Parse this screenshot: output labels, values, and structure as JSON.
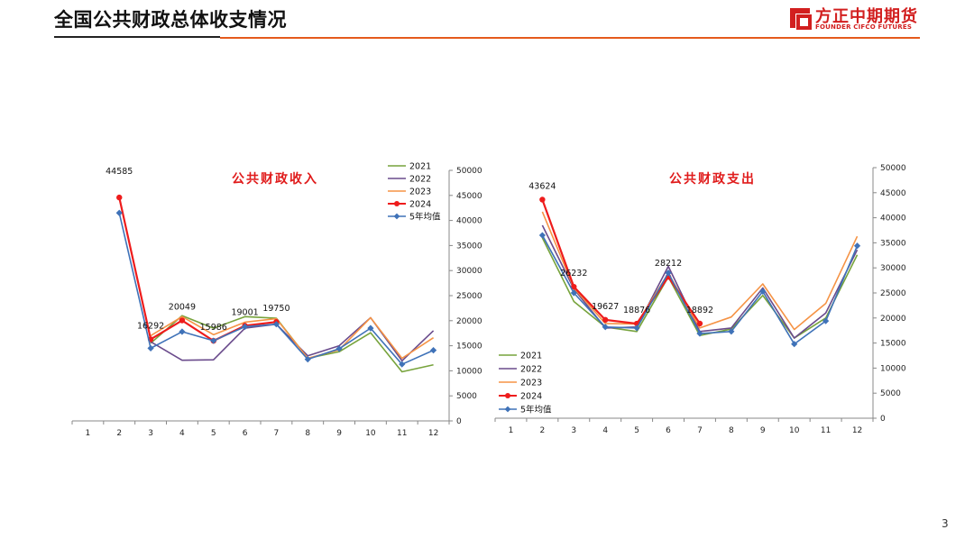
{
  "header": {
    "title": "全国公共财政总体收支情况",
    "logo_cn": "方正中期期货",
    "logo_en": "FOUNDER CIFCO FUTURES",
    "page_number": "3"
  },
  "colors": {
    "accent_orange": "#e55a1c",
    "logo_red": "#d21f1f",
    "title_red": "#e01b1b",
    "s2021": "#77a33c",
    "s2022": "#6a4b8c",
    "s2023": "#f59345",
    "s2024": "#ee1c1c",
    "avg": "#3f72b8"
  },
  "chart_data": [
    {
      "type": "line",
      "title": "公共财政收入",
      "categories": [
        "1",
        "2",
        "3",
        "4",
        "5",
        "6",
        "7",
        "8",
        "9",
        "10",
        "11",
        "12"
      ],
      "ylim": [
        0,
        50000
      ],
      "yticks": [
        0,
        5000,
        10000,
        15000,
        20000,
        25000,
        30000,
        35000,
        40000,
        45000,
        50000
      ],
      "y_axis_side": "right",
      "legend_position": "top-right",
      "series": [
        {
          "name": "2021",
          "key": "s2021",
          "marker": "none",
          "values": [
            null,
            null,
            15500,
            21000,
            18500,
            20800,
            20500,
            12500,
            13800,
            17600,
            9800,
            11200
          ]
        },
        {
          "name": "2022",
          "key": "s2022",
          "marker": "none",
          "values": [
            null,
            null,
            15800,
            12100,
            12200,
            18500,
            19300,
            13000,
            15000,
            20600,
            12000,
            18000
          ]
        },
        {
          "name": "2023",
          "key": "s2023",
          "marker": "none",
          "values": [
            null,
            null,
            17000,
            20800,
            17200,
            19700,
            20400,
            12500,
            14200,
            20600,
            12500,
            16600
          ]
        },
        {
          "name": "2024",
          "key": "s2024",
          "marker": "circle",
          "values": [
            null,
            44585,
            16292,
            20049,
            15986,
            19001,
            19750,
            null,
            null,
            null,
            null,
            null
          ]
        },
        {
          "name": "5年均值",
          "key": "avg",
          "marker": "diamond",
          "values": [
            null,
            41500,
            14500,
            17800,
            16000,
            18800,
            19300,
            12300,
            14400,
            18500,
            11300,
            14100
          ]
        }
      ],
      "data_labels": [
        {
          "category": "2",
          "value": 44585,
          "text": "44585"
        },
        {
          "category": "3",
          "value": 16292,
          "text": "16292"
        },
        {
          "category": "4",
          "value": 20049,
          "text": "20049"
        },
        {
          "category": "5",
          "value": 15986,
          "text": "15986"
        },
        {
          "category": "6",
          "value": 19001,
          "text": "19001"
        },
        {
          "category": "7",
          "value": 19750,
          "text": "19750"
        }
      ]
    },
    {
      "type": "line",
      "title": "公共财政支出",
      "categories": [
        "1",
        "2",
        "3",
        "4",
        "5",
        "6",
        "7",
        "8",
        "9",
        "10",
        "11",
        "12"
      ],
      "ylim": [
        0,
        50000
      ],
      "yticks": [
        0,
        5000,
        10000,
        15000,
        20000,
        25000,
        30000,
        35000,
        40000,
        45000,
        50000
      ],
      "y_axis_side": "right",
      "legend_position": "bottom-left",
      "series": [
        {
          "name": "2021",
          "key": "s2021",
          "marker": "none",
          "values": [
            null,
            36000,
            23300,
            18200,
            17300,
            28200,
            16500,
            17800,
            24500,
            16000,
            20000,
            32600
          ]
        },
        {
          "name": "2022",
          "key": "s2022",
          "marker": "none",
          "values": [
            null,
            38500,
            25800,
            18000,
            18200,
            30300,
            17300,
            18000,
            26000,
            16000,
            21000,
            33600
          ]
        },
        {
          "name": "2023",
          "key": "s2023",
          "marker": "none",
          "values": [
            null,
            41200,
            26000,
            18900,
            18800,
            28900,
            18000,
            20200,
            26800,
            17700,
            22900,
            36300
          ]
        },
        {
          "name": "2024",
          "key": "s2024",
          "marker": "circle",
          "values": [
            null,
            43624,
            26232,
            19627,
            18876,
            28212,
            18892,
            null,
            null,
            null,
            null,
            null
          ]
        },
        {
          "name": "5年均值",
          "key": "avg",
          "marker": "diamond",
          "values": [
            null,
            36500,
            25000,
            18200,
            18000,
            29000,
            16900,
            17300,
            25300,
            14800,
            19400,
            34400
          ]
        }
      ],
      "data_labels": [
        {
          "category": "2",
          "value": 43624,
          "text": "43624"
        },
        {
          "category": "3",
          "value": 26232,
          "text": "26232"
        },
        {
          "category": "4",
          "value": 19627,
          "text": "19627"
        },
        {
          "category": "5",
          "value": 18876,
          "text": "18876"
        },
        {
          "category": "6",
          "value": 28212,
          "text": "28212"
        },
        {
          "category": "7",
          "value": 18892,
          "text": "18892"
        }
      ]
    }
  ]
}
